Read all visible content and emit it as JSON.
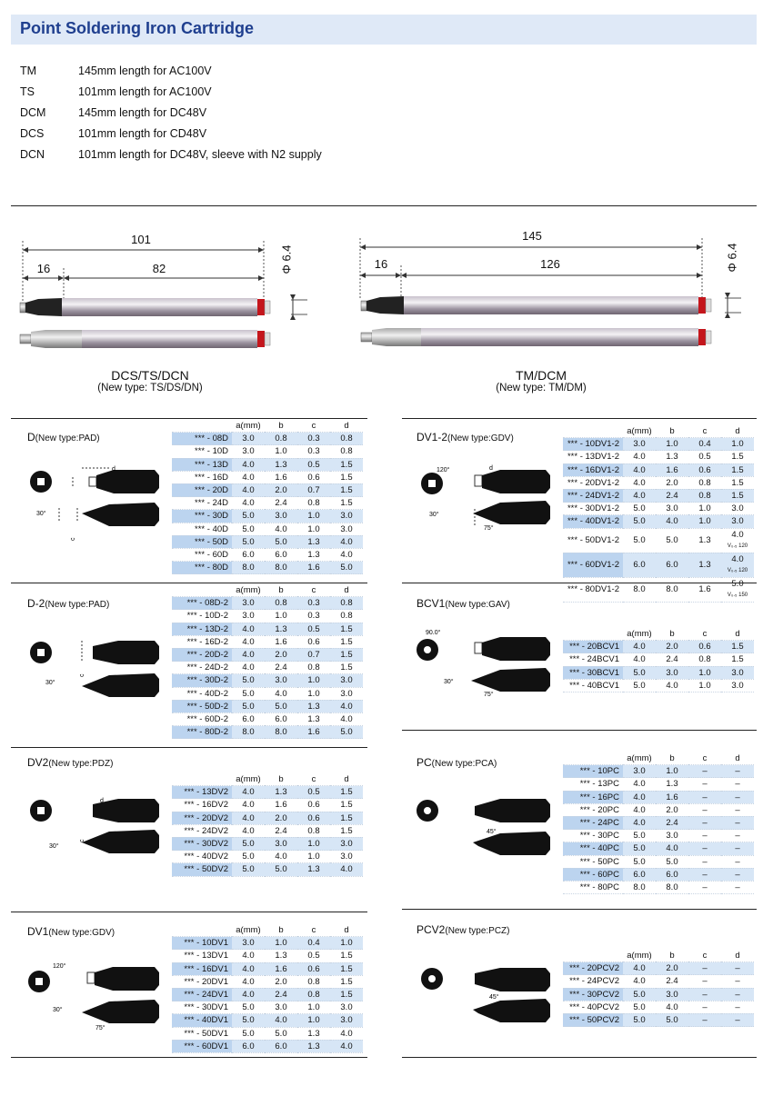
{
  "page_title": "Point Soldering Iron Cartridge",
  "types": [
    {
      "code": "TM",
      "desc": "145mm length for AC100V"
    },
    {
      "code": "TS",
      "desc": "101mm length for AC100V"
    },
    {
      "code": "DCM",
      "desc": "145mm length for DC48V"
    },
    {
      "code": "DCS",
      "desc": "101mm length for CD48V"
    },
    {
      "code": "DCN",
      "desc": "101mm length for DC48V, sleeve with N2 supply"
    }
  ],
  "cartridge_left": {
    "total": "101",
    "tip": "16",
    "body": "82",
    "dia": "Φ 6.4",
    "name": "DCS/TS/DCN",
    "new_type": "(New type: TS/DS/DN)"
  },
  "cartridge_right": {
    "total": "145",
    "tip": "16",
    "body": "126",
    "dia": "Φ 6.4",
    "name": "TM/DCM",
    "new_type": "(New type: TM/DM)"
  },
  "headers": [
    "a(mm)",
    "b",
    "c",
    "d"
  ],
  "diagram_labels": {
    "d": "d",
    "c": "c",
    "a30": "30°",
    "a75": "75°",
    "a120": "120°",
    "a90": "90.0°",
    "a45": "45°"
  },
  "sections": [
    {
      "name": "D",
      "new_type": "(New type:PAD)",
      "rows": [
        [
          "*** - 08D",
          "3.0",
          "0.8",
          "0.3",
          "0.8"
        ],
        [
          "*** - 10D",
          "3.0",
          "1.0",
          "0.3",
          "0.8"
        ],
        [
          "*** - 13D",
          "4.0",
          "1.3",
          "0.5",
          "1.5"
        ],
        [
          "*** - 16D",
          "4.0",
          "1.6",
          "0.6",
          "1.5"
        ],
        [
          "*** - 20D",
          "4.0",
          "2.0",
          "0.7",
          "1.5"
        ],
        [
          "*** - 24D",
          "4.0",
          "2.4",
          "0.8",
          "1.5"
        ],
        [
          "*** - 30D",
          "5.0",
          "3.0",
          "1.0",
          "3.0"
        ],
        [
          "*** - 40D",
          "5.0",
          "4.0",
          "1.0",
          "3.0"
        ],
        [
          "*** - 50D",
          "5.0",
          "5.0",
          "1.3",
          "4.0"
        ],
        [
          "*** - 60D",
          "6.0",
          "6.0",
          "1.3",
          "4.0"
        ],
        [
          "*** - 80D",
          "8.0",
          "8.0",
          "1.6",
          "5.0"
        ]
      ]
    },
    {
      "name": "DV1-2",
      "new_type": "(New type:GDV)",
      "rows": [
        [
          "*** - 10DV1-2",
          "3.0",
          "1.0",
          "0.4",
          "1.0"
        ],
        [
          "*** - 13DV1-2",
          "4.0",
          "1.3",
          "0.5",
          "1.5"
        ],
        [
          "*** - 16DV1-2",
          "4.0",
          "1.6",
          "0.6",
          "1.5"
        ],
        [
          "*** - 20DV1-2",
          "4.0",
          "2.0",
          "0.8",
          "1.5"
        ],
        [
          "*** - 24DV1-2",
          "4.0",
          "2.4",
          "0.8",
          "1.5"
        ],
        [
          "*** - 30DV1-2",
          "5.0",
          "3.0",
          "1.0",
          "3.0"
        ],
        [
          "*** - 40DV1-2",
          "5.0",
          "4.0",
          "1.0",
          "3.0"
        ],
        [
          "*** - 50DV1-2",
          "5.0",
          "5.0",
          "1.3",
          "4.0"
        ],
        [
          "*** - 60DV1-2",
          "6.0",
          "6.0",
          "1.3",
          "4.0"
        ],
        [
          "*** - 80DV1-2",
          "8.0",
          "8.0",
          "1.6",
          "5.0"
        ]
      ]
    },
    {
      "name": "D-2",
      "new_type": "(New type:PAD)",
      "rows": [
        [
          "*** - 08D-2",
          "3.0",
          "0.8",
          "0.3",
          "0.8"
        ],
        [
          "*** - 10D-2",
          "3.0",
          "1.0",
          "0.3",
          "0.8"
        ],
        [
          "*** - 13D-2",
          "4.0",
          "1.3",
          "0.5",
          "1.5"
        ],
        [
          "*** - 16D-2",
          "4.0",
          "1.6",
          "0.6",
          "1.5"
        ],
        [
          "*** - 20D-2",
          "4.0",
          "2.0",
          "0.7",
          "1.5"
        ],
        [
          "*** - 24D-2",
          "4.0",
          "2.4",
          "0.8",
          "1.5"
        ],
        [
          "*** - 30D-2",
          "5.0",
          "3.0",
          "1.0",
          "3.0"
        ],
        [
          "*** - 40D-2",
          "5.0",
          "4.0",
          "1.0",
          "3.0"
        ],
        [
          "*** - 50D-2",
          "5.0",
          "5.0",
          "1.3",
          "4.0"
        ],
        [
          "*** - 60D-2",
          "6.0",
          "6.0",
          "1.3",
          "4.0"
        ],
        [
          "*** - 80D-2",
          "8.0",
          "8.0",
          "1.6",
          "5.0"
        ]
      ]
    },
    {
      "name": "BCV1",
      "new_type": "(New type:GAV)",
      "rows": [
        [
          "*** - 20BCV1",
          "4.0",
          "2.0",
          "0.6",
          "1.5"
        ],
        [
          "*** - 24BCV1",
          "4.0",
          "2.4",
          "0.8",
          "1.5"
        ],
        [
          "*** - 30BCV1",
          "5.0",
          "3.0",
          "1.0",
          "3.0"
        ],
        [
          "*** - 40BCV1",
          "5.0",
          "4.0",
          "1.0",
          "3.0"
        ]
      ]
    },
    {
      "name": "DV2",
      "new_type": "(New type:PDZ)",
      "rows": [
        [
          "*** - 13DV2",
          "4.0",
          "1.3",
          "0.5",
          "1.5"
        ],
        [
          "*** - 16DV2",
          "4.0",
          "1.6",
          "0.6",
          "1.5"
        ],
        [
          "*** - 20DV2",
          "4.0",
          "2.0",
          "0.6",
          "1.5"
        ],
        [
          "*** - 24DV2",
          "4.0",
          "2.4",
          "0.8",
          "1.5"
        ],
        [
          "*** - 30DV2",
          "5.0",
          "3.0",
          "1.0",
          "3.0"
        ],
        [
          "*** - 40DV2",
          "5.0",
          "4.0",
          "1.0",
          "3.0"
        ],
        [
          "*** - 50DV2",
          "5.0",
          "5.0",
          "1.3",
          "4.0"
        ]
      ]
    },
    {
      "name": "PC",
      "new_type": "(New type:PCA)",
      "rows": [
        [
          "*** - 10PC",
          "3.0",
          "1.0",
          "–",
          "–"
        ],
        [
          "*** - 13PC",
          "4.0",
          "1.3",
          "–",
          "–"
        ],
        [
          "*** - 16PC",
          "4.0",
          "1.6",
          "–",
          "–"
        ],
        [
          "*** - 20PC",
          "4.0",
          "2.0",
          "–",
          "–"
        ],
        [
          "*** - 24PC",
          "4.0",
          "2.4",
          "–",
          "–"
        ],
        [
          "*** - 30PC",
          "5.0",
          "3.0",
          "–",
          "–"
        ],
        [
          "*** - 40PC",
          "5.0",
          "4.0",
          "–",
          "–"
        ],
        [
          "*** - 50PC",
          "5.0",
          "5.0",
          "–",
          "–"
        ],
        [
          "*** - 60PC",
          "6.0",
          "6.0",
          "–",
          "–"
        ],
        [
          "*** - 80PC",
          "8.0",
          "8.0",
          "–",
          "–"
        ]
      ]
    },
    {
      "name": "DV1",
      "new_type": "(New type:GDV)",
      "rows": [
        [
          "*** - 10DV1",
          "3.0",
          "1.0",
          "0.4",
          "1.0"
        ],
        [
          "*** - 13DV1",
          "4.0",
          "1.3",
          "0.5",
          "1.5"
        ],
        [
          "*** - 16DV1",
          "4.0",
          "1.6",
          "0.6",
          "1.5"
        ],
        [
          "*** - 20DV1",
          "4.0",
          "2.0",
          "0.8",
          "1.5"
        ],
        [
          "*** - 24DV1",
          "4.0",
          "2.4",
          "0.8",
          "1.5"
        ],
        [
          "*** - 30DV1",
          "5.0",
          "3.0",
          "1.0",
          "3.0"
        ],
        [
          "*** - 40DV1",
          "5.0",
          "4.0",
          "1.0",
          "3.0"
        ],
        [
          "*** - 50DV1",
          "5.0",
          "5.0",
          "1.3",
          "4.0"
        ],
        [
          "*** - 60DV1",
          "6.0",
          "6.0",
          "1.3",
          "4.0"
        ]
      ]
    },
    {
      "name": "PCV2",
      "new_type": "(New type:PCZ)",
      "rows": [
        [
          "*** - 20PCV2",
          "4.0",
          "2.0",
          "–",
          "–"
        ],
        [
          "*** - 24PCV2",
          "4.0",
          "2.4",
          "–",
          "–"
        ],
        [
          "*** - 30PCV2",
          "5.0",
          "3.0",
          "–",
          "–"
        ],
        [
          "*** - 40PCV2",
          "5.0",
          "4.0",
          "–",
          "–"
        ],
        [
          "*** - 50PCV2",
          "5.0",
          "5.0",
          "–",
          "–"
        ]
      ]
    }
  ],
  "dv12_d_notes": {
    "r8": "V₀.₅ 120",
    "r9": "V₀.₅ 120",
    "r10": "V₀.₅ 150"
  },
  "colors": {
    "header_bg": "#dfe9f7",
    "title": "#1f3f8f",
    "row_highlight": "#d7e6f6"
  }
}
